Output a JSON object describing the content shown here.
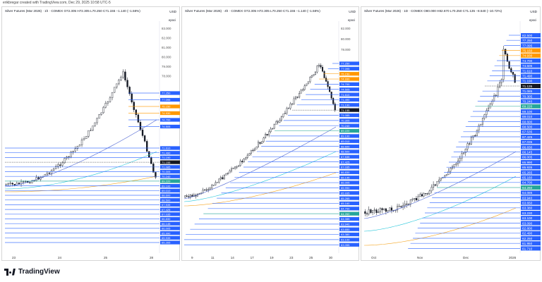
{
  "header": {
    "credit": "erikbregar created with TradingView.com, Dec 29, 2025 10:58 UTC-5"
  },
  "footer": {
    "brand": "TradingView"
  },
  "common": {
    "currency": "USD",
    "subunit": "epoci"
  },
  "colors": {
    "up": "#ffffff",
    "down": "#131722",
    "line_blue": "#2962ff",
    "ma_blue": "#4c63d2",
    "ma_cyan": "#26c6da",
    "ma_orange": "#f5a623",
    "last_price": "#131722",
    "tag_orange": "#ff9800",
    "tag_teal": "#26a69a"
  },
  "panels": [
    {
      "id": "p1",
      "title": "Silver Futures (Mar 2026) · 1h · COMEX  O72.305  H72.305  L70.250  C71.155  −1.140 (−1.58%)",
      "axis_labels": [
        "83.000",
        "82.000",
        "81.000",
        "80.000",
        "79.000",
        "78.000",
        "77.000",
        "76.000",
        "75.000",
        "74.000",
        "73.000",
        "72.000",
        "71.000",
        "70.000",
        "69.000"
      ],
      "x_labels": [
        "23",
        "24",
        "25",
        "28"
      ],
      "levels": [
        {
          "label": "77.250",
          "tag": "blue"
        },
        {
          "label": "77.095",
          "tag": "blue"
        },
        {
          "label": "75.150",
          "tag": "orange"
        },
        {
          "label": "74.930",
          "tag": "orange"
        },
        {
          "label": "74.700",
          "tag": "blue"
        },
        {
          "label": "74.505",
          "tag": "blue"
        },
        {
          "label": "71.610",
          "tag": "blue"
        },
        {
          "label": "71.490",
          "tag": "blue"
        },
        {
          "label": "71.190",
          "tag": "blue"
        },
        {
          "label": "71.155",
          "tag": "black"
        },
        {
          "label": "71.085",
          "tag": "blue"
        },
        {
          "label": "70.305",
          "tag": "blue"
        },
        {
          "label": "70.240",
          "tag": "blue"
        },
        {
          "label": "69.220",
          "tag": "teal"
        },
        {
          "label": "69.100",
          "tag": "blue"
        },
        {
          "label": "69.010",
          "tag": "blue"
        },
        {
          "label": "68.600",
          "tag": "blue"
        },
        {
          "label": "68.500",
          "tag": "blue"
        },
        {
          "label": "67.535",
          "tag": "blue"
        },
        {
          "label": "67.425",
          "tag": "blue"
        },
        {
          "label": "67.035",
          "tag": "blue"
        },
        {
          "label": "66.830",
          "tag": "blue"
        },
        {
          "label": "66.145",
          "tag": "blue"
        },
        {
          "label": "66.005",
          "tag": "blue"
        },
        {
          "label": "65.990",
          "tag": "blue"
        },
        {
          "label": "65.935",
          "tag": "blue"
        },
        {
          "label": "65.265",
          "tag": "blue"
        }
      ]
    },
    {
      "id": "p2",
      "title": "Silver Futures (Mar 2026) · 4h · COMEX  O72.305  H72.305  L70.250  C71.155  −1.140 (−1.58%)",
      "axis_labels": [
        "82.000",
        "80.000",
        "78.000",
        "76.000",
        "74.000",
        "72.000",
        "70.000",
        "68.000",
        "66.000",
        "64.000",
        "62.000",
        "60.000"
      ],
      "x_labels": [
        "9",
        "11",
        "14",
        "17",
        "19",
        "23",
        "25",
        "30"
      ],
      "levels": [
        {
          "label": "77.250",
          "tag": "blue"
        },
        {
          "label": "77.095",
          "tag": "blue"
        },
        {
          "label": "75.150",
          "tag": "orange"
        },
        {
          "label": "74.930",
          "tag": "orange"
        },
        {
          "label": "74.700",
          "tag": "blue"
        },
        {
          "label": "74.505",
          "tag": "blue"
        },
        {
          "label": "71.610",
          "tag": "blue"
        },
        {
          "label": "71.490",
          "tag": "blue"
        },
        {
          "label": "71.190",
          "tag": "blue"
        },
        {
          "label": "71.155",
          "tag": "black"
        },
        {
          "label": "71.085",
          "tag": "blue"
        },
        {
          "label": "70.305",
          "tag": "blue"
        },
        {
          "label": "70.240",
          "tag": "blue"
        },
        {
          "label": "69.220",
          "tag": "teal"
        },
        {
          "label": "69.100",
          "tag": "blue"
        },
        {
          "label": "69.010",
          "tag": "blue"
        },
        {
          "label": "68.600",
          "tag": "blue"
        },
        {
          "label": "68.500",
          "tag": "blue"
        },
        {
          "label": "67.535",
          "tag": "blue"
        },
        {
          "label": "67.425",
          "tag": "blue"
        },
        {
          "label": "67.035",
          "tag": "blue"
        },
        {
          "label": "66.830",
          "tag": "blue"
        },
        {
          "label": "66.145",
          "tag": "blue"
        },
        {
          "label": "66.005",
          "tag": "blue"
        },
        {
          "label": "65.990",
          "tag": "blue"
        },
        {
          "label": "65.935",
          "tag": "blue"
        },
        {
          "label": "65.265",
          "tag": "blue"
        },
        {
          "label": "65.160",
          "tag": "blue"
        },
        {
          "label": "64.700",
          "tag": "blue"
        },
        {
          "label": "64.260",
          "tag": "teal"
        },
        {
          "label": "64.085",
          "tag": "blue"
        },
        {
          "label": "63.940",
          "tag": "blue"
        },
        {
          "label": "63.650",
          "tag": "blue"
        },
        {
          "label": "63.380",
          "tag": "blue"
        },
        {
          "label": "63.100",
          "tag": "blue"
        },
        {
          "label": "63.055",
          "tag": "blue"
        }
      ]
    },
    {
      "id": "p3",
      "title": "Silver Futures (Mar 2026) · 1D · COMEX  O80.000  H82.670  L70.250  C71.135  −8.540 (−10.72%)",
      "axis_labels": [],
      "x_labels": [
        "Oct",
        "Nov",
        "Dec",
        "2026"
      ],
      "levels": [
        {
          "label": "82.500",
          "tag": "blue"
        },
        {
          "label": "77.250",
          "tag": "blue"
        },
        {
          "label": "77.095",
          "tag": "blue"
        },
        {
          "label": "75.150",
          "tag": "orange"
        },
        {
          "label": "74.930",
          "tag": "orange"
        },
        {
          "label": "74.700",
          "tag": "blue"
        },
        {
          "label": "74.505",
          "tag": "blue"
        },
        {
          "label": "71.610",
          "tag": "blue"
        },
        {
          "label": "71.490",
          "tag": "blue"
        },
        {
          "label": "71.190",
          "tag": "blue"
        },
        {
          "label": "71.135",
          "tag": "black"
        },
        {
          "label": "71.085",
          "tag": "blue"
        },
        {
          "label": "70.305",
          "tag": "blue"
        },
        {
          "label": "70.240",
          "tag": "blue"
        },
        {
          "label": "69.220",
          "tag": "teal"
        },
        {
          "label": "69.100",
          "tag": "blue"
        },
        {
          "label": "69.010",
          "tag": "blue"
        },
        {
          "label": "68.600",
          "tag": "blue"
        },
        {
          "label": "68.500",
          "tag": "blue"
        },
        {
          "label": "67.535",
          "tag": "blue"
        },
        {
          "label": "67.425",
          "tag": "blue"
        },
        {
          "label": "67.035",
          "tag": "blue"
        },
        {
          "label": "66.830",
          "tag": "blue"
        },
        {
          "label": "66.145",
          "tag": "blue"
        },
        {
          "label": "66.005",
          "tag": "blue"
        },
        {
          "label": "65.990",
          "tag": "blue"
        },
        {
          "label": "65.935",
          "tag": "blue"
        },
        {
          "label": "65.265",
          "tag": "blue"
        },
        {
          "label": "65.160",
          "tag": "blue"
        },
        {
          "label": "64.700",
          "tag": "blue"
        },
        {
          "label": "64.260",
          "tag": "teal"
        },
        {
          "label": "64.085",
          "tag": "blue"
        },
        {
          "label": "63.940",
          "tag": "blue"
        },
        {
          "label": "63.650",
          "tag": "blue"
        },
        {
          "label": "63.380",
          "tag": "blue"
        },
        {
          "label": "63.230",
          "tag": "blue"
        },
        {
          "label": "63.100",
          "tag": "blue"
        },
        {
          "label": "63.090",
          "tag": "blue"
        },
        {
          "label": "62.800",
          "tag": "blue"
        },
        {
          "label": "62.490",
          "tag": "blue"
        },
        {
          "label": "62.250",
          "tag": "blue"
        },
        {
          "label": "61.950",
          "tag": "blue"
        },
        {
          "label": "61.710",
          "tag": "blue"
        }
      ]
    }
  ]
}
